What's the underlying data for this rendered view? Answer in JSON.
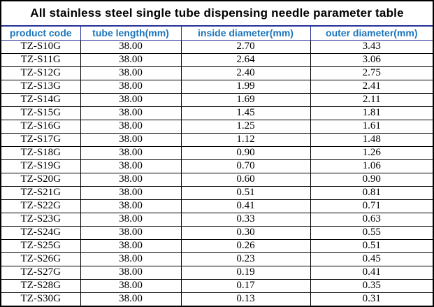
{
  "colors": {
    "background": "#ffffff",
    "header_text": "#1b75bc",
    "header_border": "#263397",
    "grid_border": "#000000",
    "title_text": "#000000",
    "outer_border": "#000000"
  },
  "chart_data": {
    "type": "table",
    "title": "All stainless steel single tube dispensing needle parameter table",
    "columns": [
      "product code",
      "tube length(mm)",
      "inside diameter(mm)",
      "outer diameter(mm)"
    ],
    "rows": [
      [
        "TZ-S10G",
        "38.00",
        "2.70",
        "3.43"
      ],
      [
        "TZ-S11G",
        "38.00",
        "2.64",
        "3.06"
      ],
      [
        "TZ-S12G",
        "38.00",
        "2.40",
        "2.75"
      ],
      [
        "TZ-S13G",
        "38.00",
        "1.99",
        "2.41"
      ],
      [
        "TZ-S14G",
        "38.00",
        "1.69",
        "2.11"
      ],
      [
        "TZ-S15G",
        "38.00",
        "1.45",
        "1.81"
      ],
      [
        "TZ-S16G",
        "38.00",
        "1.25",
        "1.61"
      ],
      [
        "TZ-S17G",
        "38.00",
        "1.12",
        "1.48"
      ],
      [
        "TZ-S18G",
        "38.00",
        "0.90",
        "1.26"
      ],
      [
        "TZ-S19G",
        "38.00",
        "0.70",
        "1.06"
      ],
      [
        "TZ-S20G",
        "38.00",
        "0.60",
        "0.90"
      ],
      [
        "TZ-S21G",
        "38.00",
        "0.51",
        "0.81"
      ],
      [
        "TZ-S22G",
        "38.00",
        "0.41",
        "0.71"
      ],
      [
        "TZ-S23G",
        "38.00",
        "0.33",
        "0.63"
      ],
      [
        "TZ-S24G",
        "38.00",
        "0.30",
        "0.55"
      ],
      [
        "TZ-S25G",
        "38.00",
        "0.26",
        "0.51"
      ],
      [
        "TZ-S26G",
        "38.00",
        "0.23",
        "0.45"
      ],
      [
        "TZ-S27G",
        "38.00",
        "0.19",
        "0.41"
      ],
      [
        "TZ-S28G",
        "38.00",
        "0.17",
        "0.35"
      ],
      [
        "TZ-S30G",
        "38.00",
        "0.13",
        "0.31"
      ]
    ]
  }
}
